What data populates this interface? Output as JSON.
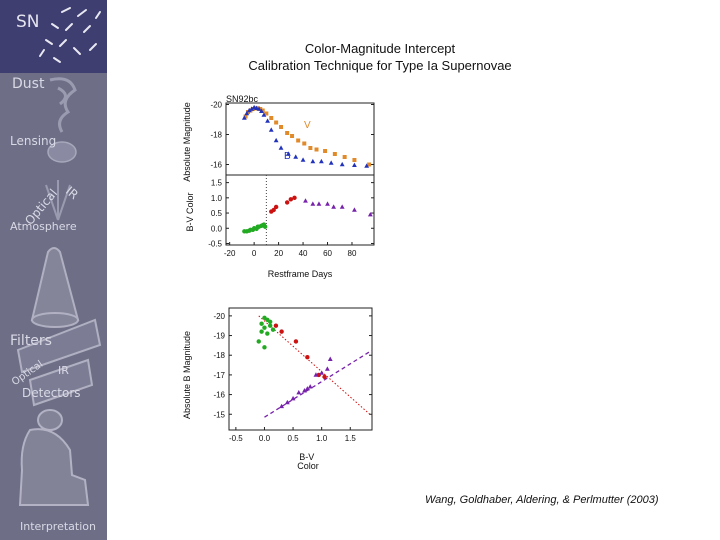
{
  "sidebar": {
    "labels": {
      "sn": "SN",
      "dust": "Dust",
      "lensing": "Lensing",
      "optical": "Optical",
      "ir": "IR",
      "atmosphere": "Atmosphere",
      "filters": "Filters",
      "optical2": "Optical",
      "ir2": "IR",
      "detectors": "Detectors",
      "interpretation": "Interpretation"
    }
  },
  "title": {
    "line1": "Color-Magnitude Intercept",
    "line2": "Calibration Technique for Type Ia Supernovae"
  },
  "citation": "Wang, Goldhaber, Aldering, & Perlmutter (2003)",
  "colors": {
    "v_band": "#e08a2a",
    "b_band": "#2233bb",
    "red_points": "#cc1111",
    "green_points": "#22aa22",
    "purple_points": "#7722aa",
    "sidebar_bg": "#6e6e86",
    "sidebar_top": "#3e3e70"
  },
  "chart_data": [
    {
      "type": "scatter",
      "panel": "light-curve",
      "title": "",
      "object_label": "SN92bc",
      "ylabel": "Absolute Magnitude",
      "ylim": [
        -15.3,
        -20.1
      ],
      "xlim": [
        -23,
        98
      ],
      "yticks": [
        "-20",
        "-18",
        "-16"
      ],
      "yticks_values": [
        -20,
        -18,
        -16
      ],
      "band_labels": {
        "v": "V",
        "b": "B"
      },
      "series": [
        {
          "name": "V",
          "marker": "square",
          "x": [
            -7,
            -5,
            -3,
            -1,
            1,
            3,
            5,
            7,
            10,
            14,
            18,
            22,
            27,
            31,
            36,
            41,
            46,
            51,
            58,
            66,
            74,
            82,
            94
          ],
          "y": [
            -19.2,
            -19.5,
            -19.6,
            -19.7,
            -19.75,
            -19.75,
            -19.7,
            -19.6,
            -19.4,
            -19.1,
            -18.8,
            -18.5,
            -18.1,
            -17.9,
            -17.6,
            -17.4,
            -17.1,
            -17.0,
            -16.9,
            -16.7,
            -16.5,
            -16.3,
            -16.0
          ]
        },
        {
          "name": "B",
          "marker": "triangle",
          "x": [
            -8,
            -6,
            -4,
            -2,
            0,
            2,
            4,
            6,
            8,
            11,
            14,
            18,
            22,
            28,
            34,
            40,
            48,
            55,
            63,
            72,
            82,
            92
          ],
          "y": [
            -19.1,
            -19.4,
            -19.6,
            -19.7,
            -19.8,
            -19.75,
            -19.7,
            -19.55,
            -19.3,
            -18.9,
            -18.3,
            -17.6,
            -17.1,
            -16.7,
            -16.5,
            -16.3,
            -16.2,
            -16.2,
            -16.1,
            -16.0,
            -15.95,
            -15.9
          ]
        }
      ]
    },
    {
      "type": "scatter",
      "panel": "color-curve",
      "ylabel": "B-V Color",
      "xlabel": "Restframe Days",
      "xlim": [
        -23,
        98
      ],
      "ylim": [
        -0.55,
        1.75
      ],
      "xticks": [
        "-20",
        "0",
        "20",
        "40",
        "60",
        "80"
      ],
      "xticks_values": [
        -20,
        0,
        20,
        40,
        60,
        80
      ],
      "yticks": [
        "1.5",
        "1.0",
        "0.5",
        "0.0",
        "-0.5"
      ],
      "yticks_values": [
        1.5,
        1.0,
        0.5,
        0.0,
        -0.5
      ],
      "vline_x": 10,
      "series": [
        {
          "name": "early",
          "color": "green",
          "x": [
            -8,
            -6,
            -4,
            -3,
            -1,
            0,
            2,
            3,
            4,
            6,
            7,
            8,
            9
          ],
          "y": [
            -0.1,
            -0.1,
            -0.08,
            -0.05,
            -0.05,
            0.0,
            -0.02,
            0.05,
            0.05,
            0.08,
            0.1,
            0.12,
            0.05
          ]
        },
        {
          "name": "middle",
          "color": "red",
          "x": [
            14,
            16,
            18,
            27,
            30,
            33
          ],
          "y": [
            0.55,
            0.6,
            0.7,
            0.85,
            0.95,
            1.0
          ]
        },
        {
          "name": "late",
          "color": "purple",
          "x": [
            42,
            48,
            53,
            60,
            65,
            72,
            82,
            95
          ],
          "y": [
            0.9,
            0.8,
            0.8,
            0.8,
            0.7,
            0.7,
            0.6,
            0.45
          ]
        }
      ]
    },
    {
      "type": "scatter",
      "panel": "color-magnitude",
      "ylabel": "Absolute B Magnitude",
      "xlabel": "B-V Color",
      "xlim": [
        -0.62,
        1.88
      ],
      "ylim": [
        -14.2,
        -20.4
      ],
      "xticks": [
        "-0.5",
        "0.0",
        "0.5",
        "1.0",
        "1.5"
      ],
      "xticks_values": [
        -0.5,
        0.0,
        0.5,
        1.0,
        1.5
      ],
      "yticks": [
        "-20",
        "-19",
        "-18",
        "-17",
        "-16",
        "-15"
      ],
      "yticks_values": [
        -20,
        -19,
        -18,
        -17,
        -16,
        -15
      ],
      "lines": [
        {
          "name": "red-dotted-fit",
          "color": "red",
          "x": [
            -0.1,
            1.88
          ],
          "y": [
            -20.0,
            -14.9
          ]
        },
        {
          "name": "purple-dashed-fit",
          "color": "purple",
          "x": [
            0.0,
            1.88
          ],
          "y": [
            -14.85,
            -18.25
          ]
        }
      ],
      "series": [
        {
          "name": "early",
          "color": "green",
          "x": [
            -0.05,
            0.0,
            0.05,
            0.1,
            0.0,
            -0.05,
            0.05,
            0.1,
            0.15,
            -0.1,
            0.0
          ],
          "y": [
            -19.6,
            -19.9,
            -19.8,
            -19.7,
            -19.4,
            -19.2,
            -19.1,
            -19.5,
            -19.3,
            -18.7,
            -18.4
          ]
        },
        {
          "name": "middle",
          "color": "red",
          "x": [
            0.2,
            0.3,
            0.55,
            0.75,
            0.95,
            1.05
          ],
          "y": [
            -19.5,
            -19.2,
            -18.7,
            -17.9,
            -17.0,
            -16.9
          ]
        },
        {
          "name": "late",
          "color": "purple",
          "x": [
            0.3,
            0.4,
            0.5,
            0.6,
            0.7,
            0.75,
            0.8,
            0.9,
            1.0,
            1.1,
            1.15
          ],
          "y": [
            -15.4,
            -15.6,
            -15.8,
            -16.1,
            -16.2,
            -16.3,
            -16.4,
            -17.0,
            -17.1,
            -17.3,
            -17.8
          ]
        }
      ]
    }
  ]
}
